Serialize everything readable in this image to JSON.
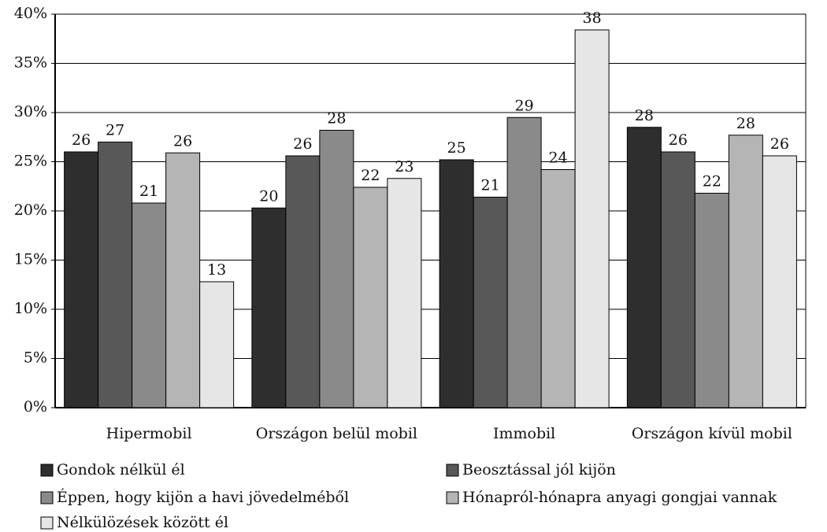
{
  "chart_data": {
    "type": "bar",
    "categories": [
      "Hipermobil",
      "Országon belül mobil",
      "Immobil",
      "Országon kívül mobil"
    ],
    "series": [
      {
        "name": "Gondok nélkül él",
        "color": "#2e2e2e",
        "values": [
          26.0,
          20.3,
          25.2,
          28.5
        ],
        "value_labels": [
          "26",
          "20",
          "25",
          "28"
        ]
      },
      {
        "name": "Beosztással jól kijön",
        "color": "#585858",
        "values": [
          27.0,
          25.6,
          21.4,
          26.0
        ],
        "value_labels": [
          "27",
          "26",
          "21",
          "26"
        ]
      },
      {
        "name": "Éppen, hogy kijön a havi jövedelméből",
        "color": "#8a8a8a",
        "values": [
          20.8,
          28.2,
          29.5,
          21.8
        ],
        "value_labels": [
          "21",
          "28",
          "29",
          "22"
        ]
      },
      {
        "name": "Hónapról-hónapra anyagi gongjai vannak",
        "color": "#b5b5b5",
        "values": [
          25.9,
          22.4,
          24.2,
          27.7
        ],
        "value_labels": [
          "26",
          "22",
          "24",
          "28"
        ]
      },
      {
        "name": "Nélkülözések között él",
        "color": "#e6e6e6",
        "values": [
          12.8,
          23.3,
          38.4,
          25.6
        ],
        "value_labels": [
          "13",
          "23",
          "38",
          "26"
        ]
      }
    ],
    "ylim": [
      0,
      40
    ],
    "yticks": [
      {
        "value": 0,
        "label": "0%"
      },
      {
        "value": 5,
        "label": "5%"
      },
      {
        "value": 10,
        "label": "10%"
      },
      {
        "value": 15,
        "label": "15%"
      },
      {
        "value": 20,
        "label": "20%"
      },
      {
        "value": 25,
        "label": "25%"
      },
      {
        "value": 30,
        "label": "30%"
      },
      {
        "value": 35,
        "label": "35%"
      },
      {
        "value": 40,
        "label": "40%"
      }
    ],
    "grid": true
  }
}
